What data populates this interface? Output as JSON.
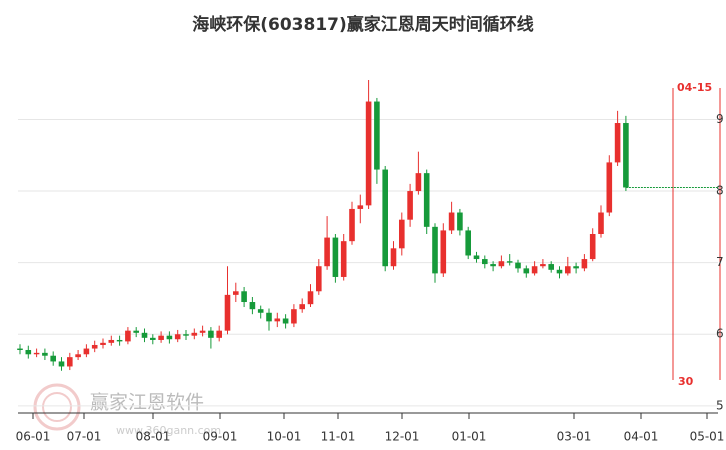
{
  "chart_data": {
    "type": "candlestick",
    "title": "海峡环保(603817)赢家江恩周天时间循环线",
    "x_labels": [
      "06-01",
      "07-01",
      "08-01",
      "09-01",
      "10-01",
      "11-01",
      "12-01",
      "01-01",
      "03-01",
      "04-01",
      "05-01"
    ],
    "ohlc": [
      [
        5.8,
        5.86,
        5.72,
        5.78
      ],
      [
        5.78,
        5.84,
        5.66,
        5.72
      ],
      [
        5.72,
        5.8,
        5.68,
        5.74
      ],
      [
        5.74,
        5.8,
        5.64,
        5.7
      ],
      [
        5.7,
        5.76,
        5.56,
        5.62
      ],
      [
        5.62,
        5.68,
        5.49,
        5.55
      ],
      [
        5.55,
        5.74,
        5.5,
        5.68
      ],
      [
        5.68,
        5.78,
        5.64,
        5.72
      ],
      [
        5.72,
        5.86,
        5.68,
        5.8
      ],
      [
        5.8,
        5.91,
        5.75,
        5.85
      ],
      [
        5.85,
        5.94,
        5.8,
        5.88
      ],
      [
        5.88,
        5.98,
        5.84,
        5.92
      ],
      [
        5.92,
        5.98,
        5.84,
        5.9
      ],
      [
        5.9,
        6.1,
        5.86,
        6.05
      ],
      [
        6.05,
        6.1,
        5.96,
        6.02
      ],
      [
        6.02,
        6.08,
        5.89,
        5.95
      ],
      [
        5.95,
        6.0,
        5.86,
        5.92
      ],
      [
        5.92,
        6.04,
        5.88,
        5.98
      ],
      [
        5.98,
        6.04,
        5.87,
        5.93
      ],
      [
        5.93,
        6.06,
        5.89,
        6.0
      ],
      [
        6.0,
        6.06,
        5.92,
        5.98
      ],
      [
        5.98,
        6.08,
        5.93,
        6.02
      ],
      [
        6.02,
        6.12,
        5.97,
        6.05
      ],
      [
        6.05,
        6.1,
        5.8,
        5.95
      ],
      [
        5.95,
        6.12,
        5.9,
        6.05
      ],
      [
        6.05,
        6.95,
        6.0,
        6.55
      ],
      [
        6.55,
        6.72,
        6.45,
        6.6
      ],
      [
        6.6,
        6.66,
        6.38,
        6.45
      ],
      [
        6.45,
        6.52,
        6.28,
        6.35
      ],
      [
        6.35,
        6.4,
        6.22,
        6.3
      ],
      [
        6.3,
        6.36,
        6.05,
        6.18
      ],
      [
        6.18,
        6.3,
        6.1,
        6.22
      ],
      [
        6.22,
        6.28,
        6.08,
        6.15
      ],
      [
        6.15,
        6.42,
        6.1,
        6.35
      ],
      [
        6.35,
        6.5,
        6.3,
        6.42
      ],
      [
        6.42,
        6.7,
        6.38,
        6.6
      ],
      [
        6.6,
        7.05,
        6.55,
        6.95
      ],
      [
        6.95,
        7.65,
        6.9,
        7.35
      ],
      [
        7.35,
        7.4,
        6.72,
        6.8
      ],
      [
        6.8,
        7.4,
        6.75,
        7.3
      ],
      [
        7.3,
        7.85,
        7.25,
        7.75
      ],
      [
        7.75,
        7.95,
        7.55,
        7.8
      ],
      [
        7.8,
        9.55,
        7.75,
        9.25
      ],
      [
        9.25,
        9.3,
        8.1,
        8.3
      ],
      [
        8.3,
        8.35,
        6.88,
        6.95
      ],
      [
        6.95,
        7.3,
        6.9,
        7.2
      ],
      [
        7.2,
        7.7,
        7.1,
        7.6
      ],
      [
        7.6,
        8.1,
        7.5,
        8.0
      ],
      [
        8.0,
        8.55,
        7.95,
        8.25
      ],
      [
        8.25,
        8.3,
        7.4,
        7.5
      ],
      [
        7.5,
        7.55,
        6.72,
        6.85
      ],
      [
        6.85,
        7.55,
        6.8,
        7.45
      ],
      [
        7.45,
        7.85,
        7.4,
        7.7
      ],
      [
        7.7,
        7.75,
        7.38,
        7.45
      ],
      [
        7.45,
        7.5,
        7.05,
        7.1
      ],
      [
        7.1,
        7.15,
        7.0,
        7.05
      ],
      [
        7.05,
        7.1,
        6.92,
        6.98
      ],
      [
        6.98,
        7.02,
        6.88,
        6.95
      ],
      [
        6.95,
        7.1,
        6.92,
        7.02
      ],
      [
        7.02,
        7.12,
        6.96,
        7.0
      ],
      [
        7.0,
        7.04,
        6.86,
        6.92
      ],
      [
        6.92,
        6.96,
        6.79,
        6.85
      ],
      [
        6.85,
        7.02,
        6.82,
        6.95
      ],
      [
        6.95,
        7.05,
        6.92,
        6.98
      ],
      [
        6.98,
        7.02,
        6.86,
        6.9
      ],
      [
        6.9,
        6.95,
        6.78,
        6.85
      ],
      [
        6.85,
        7.08,
        6.82,
        6.95
      ],
      [
        6.95,
        7.0,
        6.85,
        6.92
      ],
      [
        6.92,
        7.12,
        6.88,
        7.05
      ],
      [
        7.05,
        7.48,
        7.02,
        7.4
      ],
      [
        7.4,
        7.8,
        7.35,
        7.7
      ],
      [
        7.7,
        8.5,
        7.65,
        8.4
      ],
      [
        8.4,
        9.12,
        8.35,
        8.95
      ],
      [
        8.95,
        9.05,
        8.0,
        8.05
      ]
    ],
    "up_color": "#e8302e",
    "down_color": "#169a3a",
    "ylim": [
      4.9,
      9.9
    ],
    "yticks": [
      5,
      6,
      7,
      8,
      9
    ],
    "grid": true,
    "annotations": {
      "cycle_date": "04-15",
      "cycle_days": "30"
    },
    "watermark": {
      "brand": "赢家江恩软件",
      "url": "www.360gann.com"
    }
  }
}
